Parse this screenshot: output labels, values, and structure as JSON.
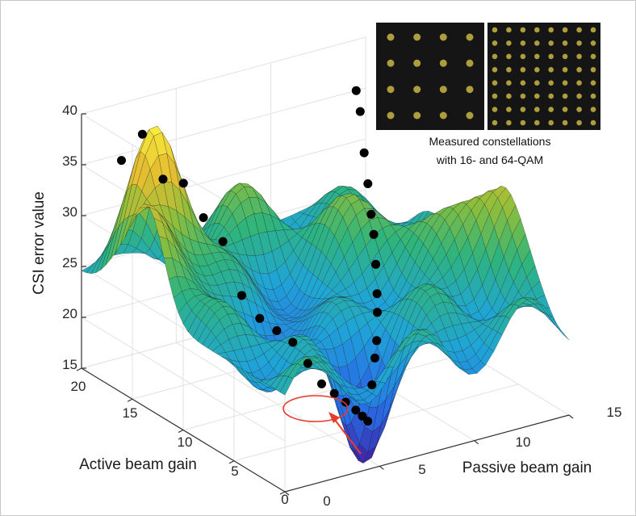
{
  "chart_data": {
    "type": "surface3d",
    "zlabel": "CSI error value",
    "xlabel": "Passive beam gain",
    "ylabel": "Active beam gain",
    "x_ticks": [
      "0",
      "5",
      "10",
      "15"
    ],
    "y_ticks": [
      "0",
      "5",
      "10",
      "15",
      "20"
    ],
    "z_ticks": [
      "15",
      "20",
      "25",
      "30",
      "35",
      "40"
    ],
    "xlim": [
      0,
      15
    ],
    "ylim": [
      0,
      20
    ],
    "zlim": [
      15,
      40
    ],
    "grid": true,
    "colormap": "parula",
    "colors": {
      "low": "#3e26a8",
      "mid_low": "#1fa5d7",
      "mid": "#2fb47c",
      "mid_high": "#a8bd3a",
      "high": "#f9c933",
      "marker": "#000000",
      "highlight": "#e8392a"
    },
    "measured_points": {
      "marker": "black dot",
      "approx_z_values": [
        37,
        40,
        36,
        36,
        33,
        31,
        26,
        24,
        23,
        22,
        20,
        18,
        17,
        16,
        15,
        14,
        13,
        16,
        18,
        19,
        21,
        22,
        24,
        26,
        27,
        29,
        31,
        34,
        35
      ]
    },
    "minimum": {
      "highlight": "red circle and arrow",
      "approx_z": 13
    },
    "annotation": {
      "line1": "Measured constellations",
      "line2": "with 16- and 64-QAM"
    },
    "insets": [
      {
        "name": "16-QAM constellation",
        "grid": 4,
        "color": "#c8b544",
        "background": "#151515"
      },
      {
        "name": "64-QAM constellation",
        "grid": 8,
        "color": "#c8b544",
        "background": "#151515"
      }
    ]
  }
}
